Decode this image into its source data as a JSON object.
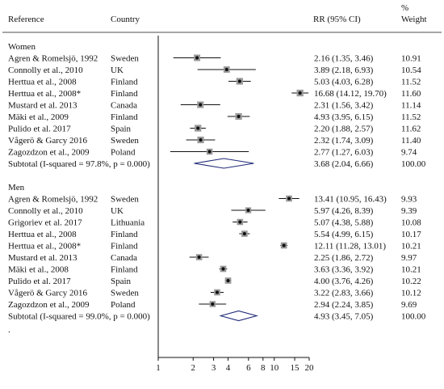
{
  "chart_data": {
    "type": "forest",
    "title": "",
    "xlabel": "",
    "ylabel": "",
    "x_scale": "log",
    "reference_line": 1,
    "columns": {
      "reference": "Reference",
      "country": "Country",
      "effect": "RR (95% CI)",
      "weight_line1": "%",
      "weight_line2": "Weight"
    },
    "x_ticks": [
      1,
      2,
      3,
      4,
      6,
      8,
      10,
      15,
      20
    ],
    "x_tick_labels": [
      "1",
      "2",
      "3",
      "4",
      "6",
      "8",
      "10",
      "15",
      "20"
    ],
    "groups": [
      {
        "name": "Women",
        "studies": [
          {
            "reference": "Agren & Romelsjö, 1992",
            "country": "Sweden",
            "rr": 2.16,
            "lo": 1.35,
            "hi": 3.46,
            "ci_text": "2.16 (1.35, 3.46)",
            "weight": 10.91,
            "weight_text": "10.91"
          },
          {
            "reference": "Connolly et al., 2010",
            "country": "UK",
            "rr": 3.89,
            "lo": 2.18,
            "hi": 6.93,
            "ci_text": "3.89 (2.18, 6.93)",
            "weight": 10.54,
            "weight_text": "10.54"
          },
          {
            "reference": "Herttua et al., 2008",
            "country": "Finland",
            "rr": 5.03,
            "lo": 4.03,
            "hi": 6.28,
            "ci_text": "5.03 (4.03, 6.28)",
            "weight": 11.52,
            "weight_text": "11.52"
          },
          {
            "reference": "Herttua et al., 2008*",
            "country": "Finland",
            "rr": 16.68,
            "lo": 14.12,
            "hi": 19.7,
            "ci_text": "16.68 (14.12, 19.70)",
            "weight": 11.6,
            "weight_text": "11.60"
          },
          {
            "reference": "Mustard et al. 2013",
            "country": "Canada",
            "rr": 2.31,
            "lo": 1.56,
            "hi": 3.42,
            "ci_text": "2.31 (1.56, 3.42)",
            "weight": 11.14,
            "weight_text": "11.14"
          },
          {
            "reference": "Mäki et al., 2009",
            "country": "Finland",
            "rr": 4.93,
            "lo": 3.95,
            "hi": 6.15,
            "ci_text": "4.93 (3.95, 6.15)",
            "weight": 11.52,
            "weight_text": "11.52"
          },
          {
            "reference": "Pulido et al. 2017",
            "country": "Spain",
            "rr": 2.2,
            "lo": 1.88,
            "hi": 2.57,
            "ci_text": "2.20 (1.88, 2.57)",
            "weight": 11.62,
            "weight_text": "11.62"
          },
          {
            "reference": "Vågerö & Garcy 2016",
            "country": "Sweden",
            "rr": 2.32,
            "lo": 1.74,
            "hi": 3.09,
            "ci_text": "2.32 (1.74, 3.09)",
            "weight": 11.4,
            "weight_text": "11.40"
          },
          {
            "reference": "Zagozdzon et al., 2009",
            "country": "Poland",
            "rr": 2.77,
            "lo": 1.27,
            "hi": 6.03,
            "ci_text": "2.77 (1.27, 6.03)",
            "weight": 9.74,
            "weight_text": "9.74"
          }
        ],
        "subtotal": {
          "label": "Subtotal  (I-squared = 97.8%, p = 0.000)",
          "rr": 3.68,
          "lo": 2.04,
          "hi": 6.66,
          "ci_text": "3.68 (2.04, 6.66)",
          "weight_text": "100.00"
        }
      },
      {
        "name": "Men",
        "studies": [
          {
            "reference": "Agren & Romelsjö, 1992",
            "country": "Sweden",
            "rr": 13.41,
            "lo": 10.95,
            "hi": 16.43,
            "ci_text": "13.41 (10.95, 16.43)",
            "weight": 9.93,
            "weight_text": "9.93"
          },
          {
            "reference": "Connolly et al., 2010",
            "country": "UK",
            "rr": 5.97,
            "lo": 4.26,
            "hi": 8.39,
            "ci_text": "5.97 (4.26, 8.39)",
            "weight": 9.39,
            "weight_text": "9.39"
          },
          {
            "reference": "Grigoriev et al. 2017",
            "country": "Lithuania",
            "rr": 5.07,
            "lo": 4.38,
            "hi": 5.88,
            "ci_text": "5.07 (4.38, 5.88)",
            "weight": 10.08,
            "weight_text": "10.08"
          },
          {
            "reference": "Herttua et al., 2008",
            "country": "Finland",
            "rr": 5.54,
            "lo": 4.99,
            "hi": 6.15,
            "ci_text": "5.54 (4.99, 6.15)",
            "weight": 10.17,
            "weight_text": "10.17"
          },
          {
            "reference": "Herttua et al., 2008*",
            "country": "Finland",
            "rr": 12.11,
            "lo": 11.28,
            "hi": 13.01,
            "ci_text": "12.11 (11.28, 13.01)",
            "weight": 10.21,
            "weight_text": "10.21"
          },
          {
            "reference": "Mustard et al. 2013",
            "country": "Canada",
            "rr": 2.25,
            "lo": 1.86,
            "hi": 2.72,
            "ci_text": "2.25 (1.86, 2.72)",
            "weight": 9.97,
            "weight_text": "9.97"
          },
          {
            "reference": "Mäki et al., 2008",
            "country": "Finland",
            "rr": 3.63,
            "lo": 3.36,
            "hi": 3.92,
            "ci_text": "3.63 (3.36, 3.92)",
            "weight": 10.21,
            "weight_text": "10.21"
          },
          {
            "reference": "Pulido et al. 2017",
            "country": "Spain",
            "rr": 4.0,
            "lo": 3.76,
            "hi": 4.26,
            "ci_text": "4.00 (3.76, 4.26)",
            "weight": 10.22,
            "weight_text": "10.22"
          },
          {
            "reference": "Vågerö & Garcy 2016",
            "country": "Sweden",
            "rr": 3.22,
            "lo": 2.83,
            "hi": 3.66,
            "ci_text": "3.22 (2.83, 3.66)",
            "weight": 10.12,
            "weight_text": "10.12"
          },
          {
            "reference": "Zagozdzon et al., 2009",
            "country": "Poland",
            "rr": 2.94,
            "lo": 2.24,
            "hi": 3.85,
            "ci_text": "2.94 (2.24, 3.85)",
            "weight": 9.69,
            "weight_text": "9.69"
          }
        ],
        "subtotal": {
          "label": "Subtotal  (I-squared = 99.0%, p = 0.000)",
          "rr": 4.93,
          "lo": 3.45,
          "hi": 7.05,
          "ci_text": "4.93 (3.45, 7.05)",
          "weight_text": "100.00"
        }
      }
    ],
    "trailing_mark": ".",
    "colors": {
      "line": "#111111",
      "marker_box": "#9a9a9a",
      "diamond": "#1f2a78"
    }
  }
}
